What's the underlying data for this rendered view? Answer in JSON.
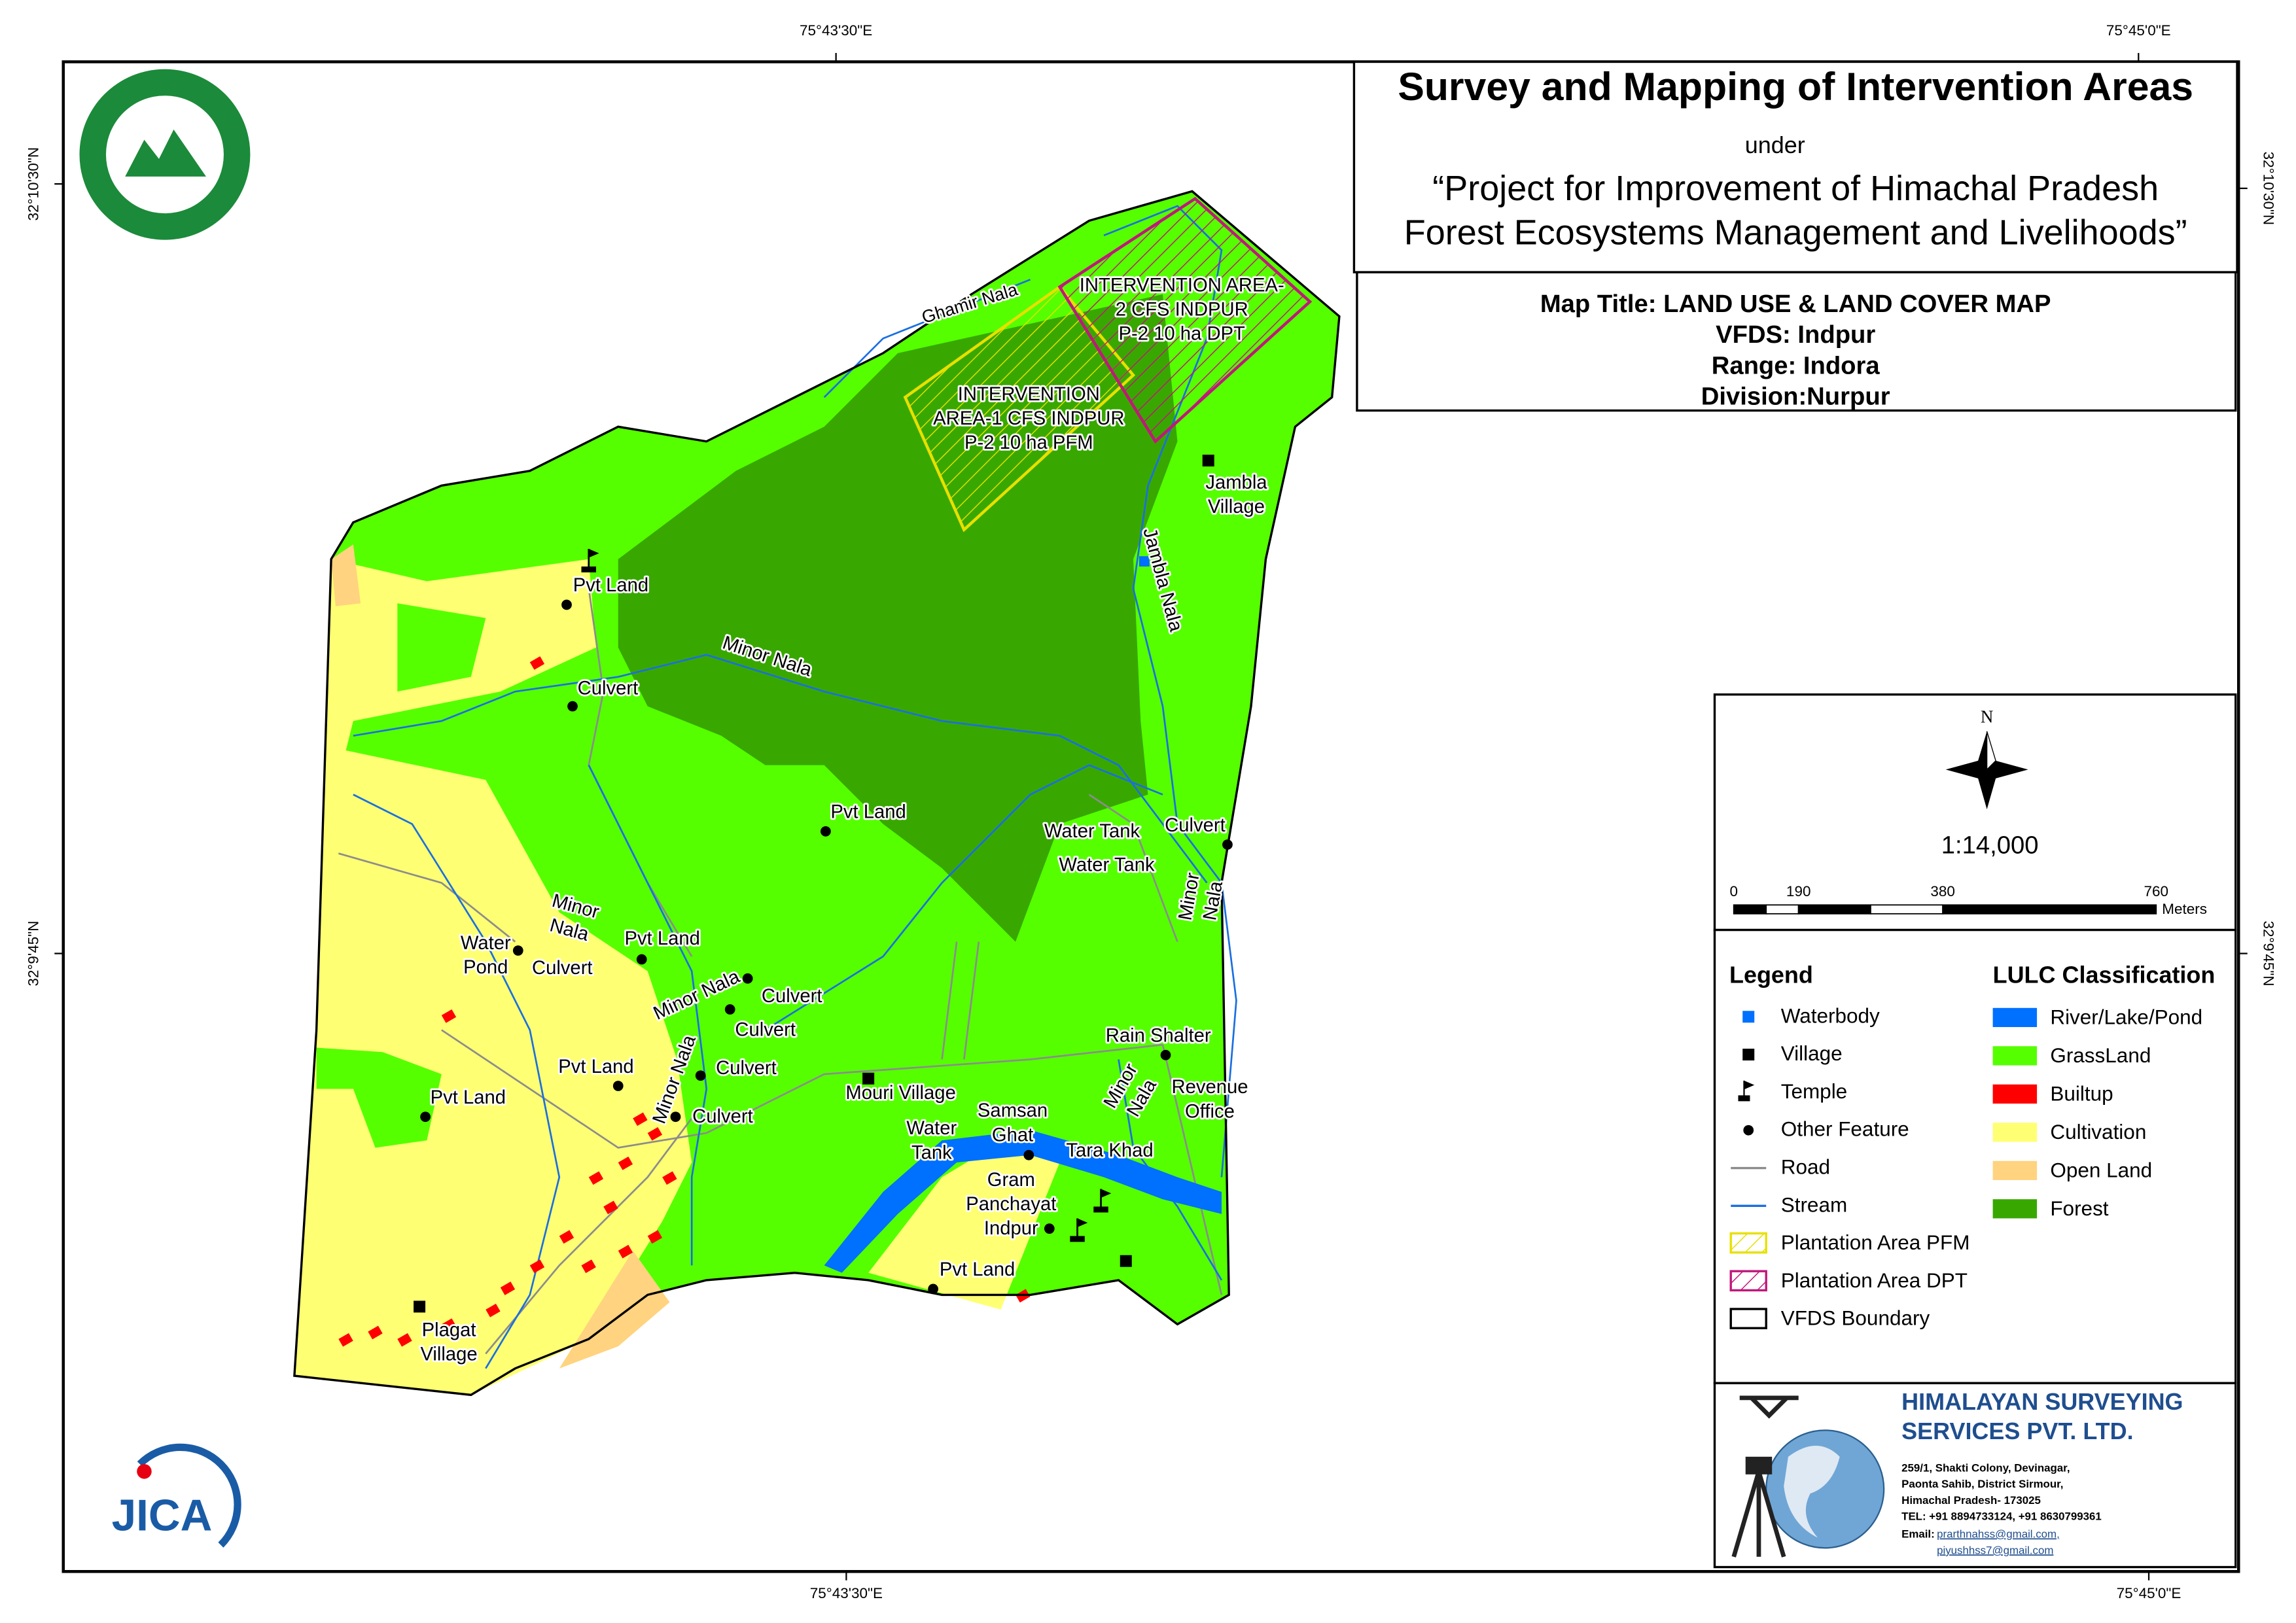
{
  "coordinates": {
    "top": [
      "75°43'30\"E",
      "75°45'0\"E"
    ],
    "bottom": [
      "75°43'30\"E",
      "75°45'0\"E"
    ],
    "left": [
      "32°10'30\"N",
      "32°9'45\"N"
    ],
    "right": [
      "32°10'30\"N",
      "32°9'45\"N"
    ]
  },
  "header": {
    "title": "Survey and Mapping of Intervention Areas",
    "under": "under",
    "project_line1": "“Project for Improvement of Himachal Pradesh",
    "project_line2": "Forest Ecosystems Management and Livelihoods”"
  },
  "map_info": {
    "map_title": "Map Title: LAND USE & LAND COVER MAP",
    "vfds": "VFDS: Indpur",
    "range": "Range: Indora",
    "division": "Division:Nurpur"
  },
  "north": "N",
  "scale": {
    "ratio": "1:14,000",
    "ticks": [
      "0",
      "190",
      "380",
      "760"
    ],
    "unit": "Meters"
  },
  "legend": {
    "title": "Legend",
    "items": [
      "Waterbody",
      "Village",
      "Temple",
      "Other Feature",
      "Road",
      "Stream",
      "Plantation Area PFM",
      "Plantation Area DPT",
      "VFDS Boundary"
    ]
  },
  "lulc": {
    "title": "LULC Classification",
    "items": [
      {
        "label": "River/Lake/Pond",
        "color": "#0070ff"
      },
      {
        "label": "GrassLand",
        "color": "#55ff00"
      },
      {
        "label": "Builtup",
        "color": "#ff0000"
      },
      {
        "label": "Cultivation",
        "color": "#ffff73"
      },
      {
        "label": "Open Land",
        "color": "#ffd37f"
      },
      {
        "label": "Forest",
        "color": "#38a800"
      }
    ]
  },
  "map_labels": [
    {
      "lines": [
        "Ghamir Nala"
      ]
    },
    {
      "lines": [
        "INTERVENTION AREA-",
        "2 CFS INDPUR",
        "P-2 10 ha DPT"
      ]
    },
    {
      "lines": [
        "INTERVENTION",
        "AREA-1 CFS INDPUR",
        "P-2 10 ha PFM"
      ]
    },
    {
      "lines": [
        "Jambla",
        "Village"
      ]
    },
    {
      "lines": [
        "Jambla Nala"
      ]
    },
    {
      "lines": [
        "Pvt Land"
      ]
    },
    {
      "lines": [
        "Minor Nala"
      ]
    },
    {
      "lines": [
        "Culvert"
      ]
    },
    {
      "lines": [
        "Pvt Land"
      ]
    },
    {
      "lines": [
        "Water Tank"
      ]
    },
    {
      "lines": [
        "Water Tank"
      ]
    },
    {
      "lines": [
        "Culvert"
      ]
    },
    {
      "lines": [
        "Minor",
        "Nala"
      ]
    },
    {
      "lines": [
        "Minor",
        "Nala"
      ]
    },
    {
      "lines": [
        "Water",
        "Pond"
      ]
    },
    {
      "lines": [
        "Culvert"
      ]
    },
    {
      "lines": [
        "Pvt Land"
      ]
    },
    {
      "lines": [
        "Minor Nala"
      ]
    },
    {
      "lines": [
        "Culvert"
      ]
    },
    {
      "lines": [
        "Culvert"
      ]
    },
    {
      "lines": [
        "Culvert"
      ]
    },
    {
      "lines": [
        "Pvt Land"
      ]
    },
    {
      "lines": [
        "Pvt Land"
      ]
    },
    {
      "lines": [
        "Minor Nala"
      ]
    },
    {
      "lines": [
        "Culvert"
      ]
    },
    {
      "lines": [
        "Mouri Village"
      ]
    },
    {
      "lines": [
        "Rain Shalter"
      ]
    },
    {
      "lines": [
        "Revenue",
        "Office"
      ]
    },
    {
      "lines": [
        "Minor",
        "Nala"
      ]
    },
    {
      "lines": [
        "Samsan",
        "Ghat"
      ]
    },
    {
      "lines": [
        "Water",
        "Tank"
      ]
    },
    {
      "lines": [
        "Tara Khad"
      ]
    },
    {
      "lines": [
        "Gram",
        "Panchayat",
        "Indpur"
      ]
    },
    {
      "lines": [
        "Pvt Land"
      ]
    },
    {
      "lines": [
        "Plagat",
        "Village"
      ]
    }
  ],
  "company": {
    "name_line1": "HIMALAYAN SURVEYING",
    "name_line2": "SERVICES PVT. LTD.",
    "address": [
      "259/1, Shakti Colony, Devinagar,",
      "Paonta Sahib, District Sirmour,",
      "Himachal Pradesh- 173025",
      "TEL: +91 8894733124, +91 8630799361"
    ],
    "email_label": "Email:",
    "emails": [
      "prarthnahss@gmail.com,",
      "piyushhss7@gmail.com"
    ]
  },
  "jica_logo": "JICA"
}
